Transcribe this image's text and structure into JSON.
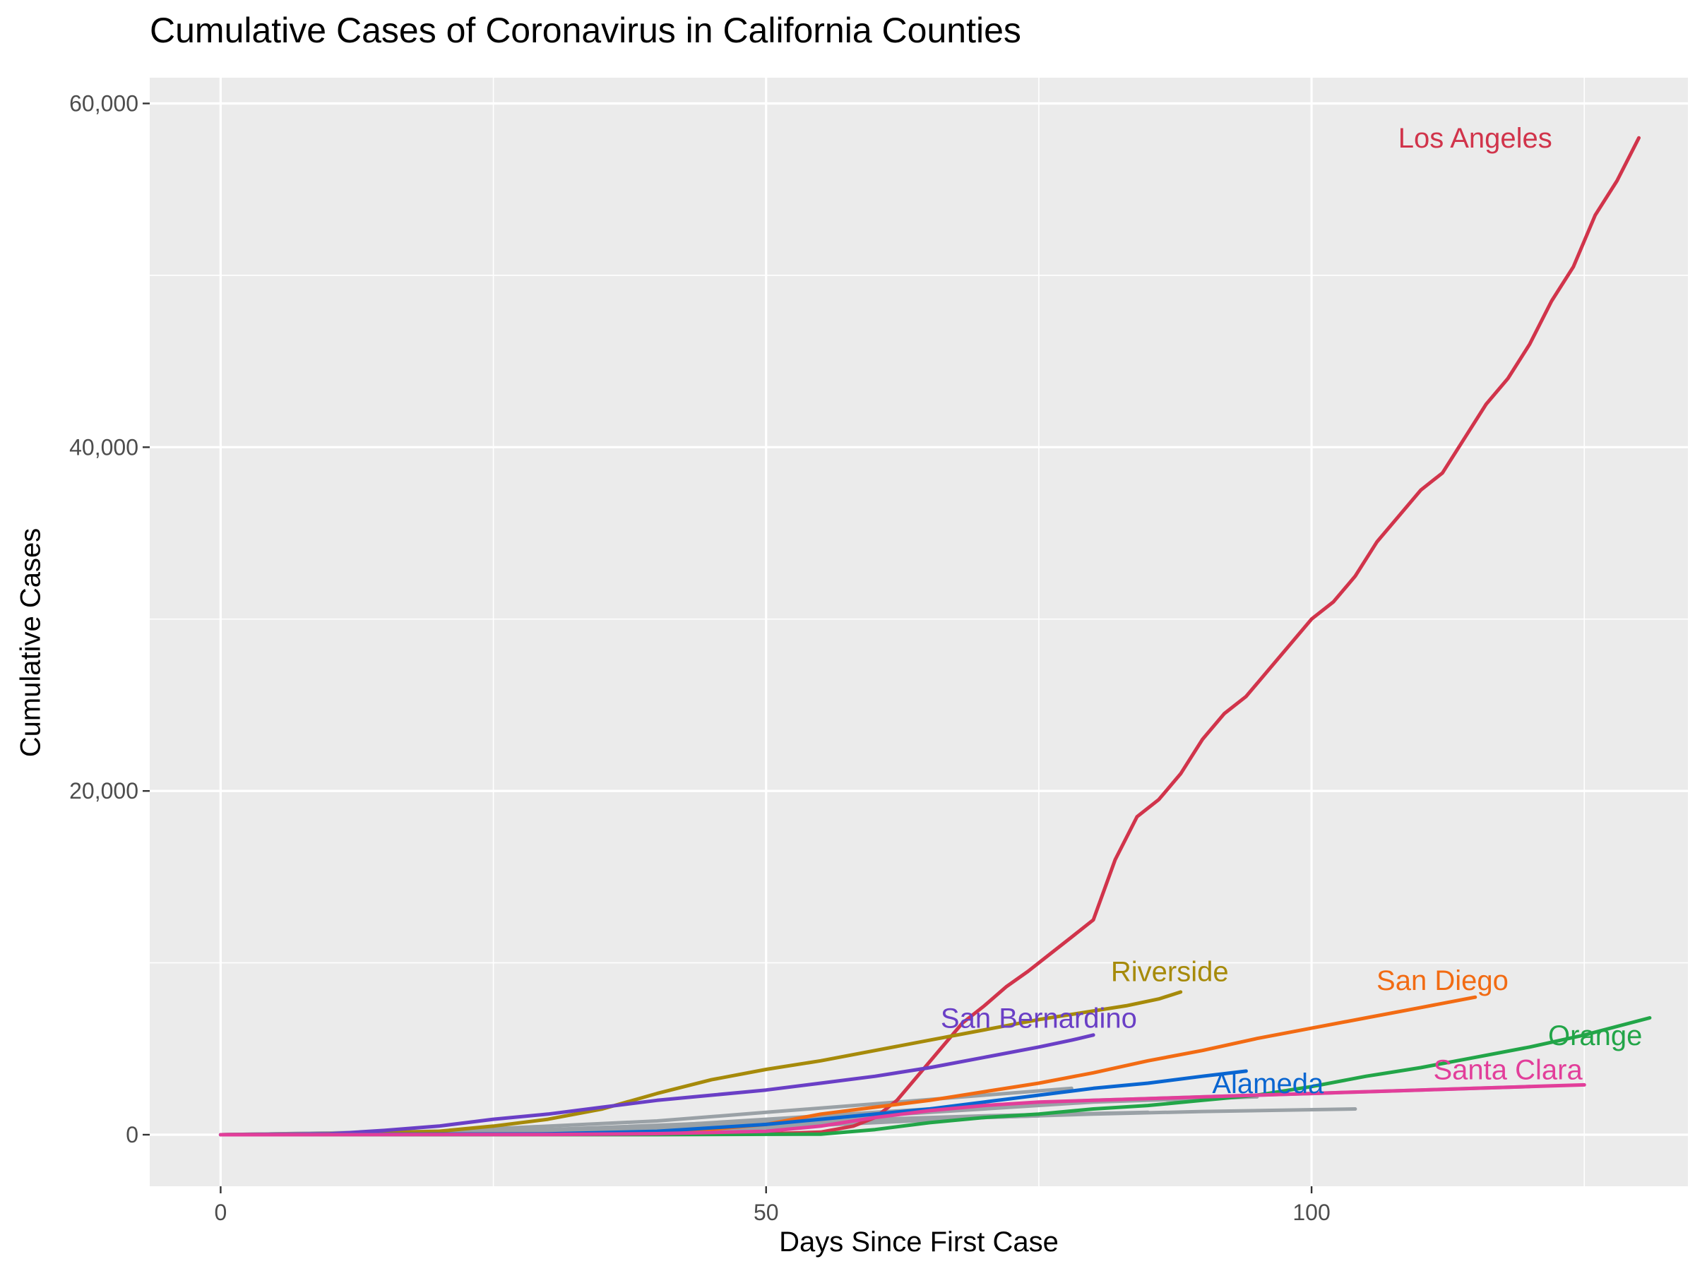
{
  "chart_data": {
    "type": "line",
    "title": "Cumulative Cases of Coronavirus in California Counties",
    "xlabel": "Days Since First Case",
    "ylabel": "Cumulative Cases",
    "xlim": [
      -6.5,
      134.5
    ],
    "ylim": [
      -3000,
      61500
    ],
    "x_ticks": [
      0,
      50,
      100
    ],
    "x_tick_labels": [
      "0",
      "50",
      "100"
    ],
    "y_ticks": [
      0,
      20000,
      40000,
      60000
    ],
    "y_tick_labels": [
      "0",
      "20,000",
      "40,000",
      "60,000"
    ],
    "grid": true,
    "legend": "none (direct labels)",
    "panel_background": "#EBEBEB",
    "grid_color": "#FFFFFF",
    "series": [
      {
        "name": "Los Angeles",
        "color": "#D1344B",
        "label_at": [
          115,
          58000
        ],
        "x": [
          0,
          10,
          20,
          30,
          40,
          45,
          50,
          55,
          58,
          60,
          62,
          64,
          66,
          68,
          70,
          72,
          74,
          76,
          78,
          80,
          82,
          84,
          86,
          88,
          90,
          92,
          94,
          96,
          98,
          100,
          102,
          104,
          106,
          108,
          110,
          112,
          114,
          116,
          118,
          120,
          122,
          124,
          126,
          128,
          130
        ],
        "values": [
          0,
          5,
          10,
          12,
          15,
          20,
          50,
          150,
          500,
          1000,
          2000,
          3500,
          5000,
          6500,
          7500,
          8600,
          9500,
          10500,
          11500,
          12500,
          16000,
          18500,
          19500,
          21000,
          23000,
          24500,
          25500,
          27000,
          28500,
          30000,
          31000,
          32500,
          34500,
          36000,
          37500,
          38500,
          40500,
          42500,
          44000,
          46000,
          48500,
          50500,
          53500,
          55500,
          58000
        ]
      },
      {
        "name": "Riverside",
        "color": "#A68A0A",
        "label_at": [
          87,
          9500
        ],
        "x": [
          0,
          10,
          20,
          25,
          30,
          35,
          40,
          45,
          50,
          55,
          60,
          65,
          70,
          75,
          80,
          83,
          86,
          88
        ],
        "values": [
          0,
          50,
          200,
          500,
          900,
          1500,
          2400,
          3200,
          3800,
          4300,
          4900,
          5500,
          6100,
          6700,
          7200,
          7500,
          7900,
          8300
        ]
      },
      {
        "name": "San Bernardino",
        "color": "#6A3FC6",
        "label_at": [
          75,
          6800
        ],
        "x": [
          0,
          10,
          15,
          20,
          25,
          30,
          35,
          40,
          45,
          50,
          55,
          60,
          65,
          70,
          75,
          78,
          80
        ],
        "values": [
          0,
          50,
          250,
          500,
          900,
          1200,
          1600,
          2000,
          2300,
          2600,
          3000,
          3400,
          3900,
          4500,
          5100,
          5500,
          5800
        ]
      },
      {
        "name": "San Diego",
        "color": "#F26B13",
        "label_at": [
          112,
          9000
        ],
        "x": [
          0,
          20,
          40,
          50,
          55,
          60,
          65,
          70,
          75,
          80,
          85,
          90,
          95,
          100,
          105,
          110,
          115
        ],
        "values": [
          0,
          10,
          30,
          600,
          1200,
          1600,
          2000,
          2500,
          3000,
          3600,
          4300,
          4900,
          5600,
          6200,
          6800,
          7400,
          8000
        ]
      },
      {
        "name": "Orange",
        "color": "#22A548",
        "label_at": [
          126,
          5800
        ],
        "x": [
          0,
          40,
          55,
          60,
          65,
          70,
          75,
          80,
          85,
          90,
          95,
          100,
          105,
          110,
          115,
          120,
          125,
          131
        ],
        "values": [
          0,
          5,
          30,
          300,
          700,
          1000,
          1200,
          1500,
          1700,
          2000,
          2300,
          2800,
          3400,
          3900,
          4500,
          5100,
          5800,
          6800
        ]
      },
      {
        "name": "Alameda",
        "color": "#0A66D1",
        "label_at": [
          96,
          3000
        ],
        "x": [
          0,
          30,
          40,
          50,
          55,
          60,
          65,
          70,
          75,
          80,
          85,
          90,
          94
        ],
        "values": [
          0,
          50,
          200,
          600,
          900,
          1200,
          1500,
          1900,
          2300,
          2700,
          3000,
          3400,
          3700
        ]
      },
      {
        "name": "Santa Clara",
        "color": "#E23E9A",
        "label_at": [
          118,
          3800
        ],
        "x": [
          0,
          30,
          40,
          50,
          55,
          60,
          65,
          70,
          75,
          80,
          85,
          90,
          95,
          100,
          105,
          110,
          115,
          120,
          125
        ],
        "values": [
          0,
          10,
          60,
          200,
          500,
          1000,
          1400,
          1700,
          1900,
          2000,
          2100,
          2200,
          2300,
          2400,
          2500,
          2600,
          2700,
          2800,
          2900
        ]
      },
      {
        "name": "",
        "color": "#9AA1A6",
        "x": [
          0,
          20,
          40,
          50,
          60,
          70,
          78
        ],
        "values": [
          0,
          200,
          800,
          1300,
          1800,
          2300,
          2700
        ]
      },
      {
        "name": "",
        "color": "#9AA1A6",
        "x": [
          0,
          20,
          40,
          50,
          60,
          70,
          80,
          90,
          100,
          110,
          120
        ],
        "values": [
          0,
          100,
          500,
          900,
          1300,
          1700,
          2000,
          2200,
          2400,
          2600,
          2800
        ]
      },
      {
        "name": "",
        "color": "#9AA1A6",
        "x": [
          0,
          30,
          50,
          60,
          70,
          80,
          90,
          104
        ],
        "values": [
          0,
          100,
          400,
          700,
          1000,
          1200,
          1350,
          1500
        ]
      },
      {
        "name": "",
        "color": "#9AA1A6",
        "x": [
          0,
          30,
          50,
          60,
          70,
          85
        ],
        "values": [
          0,
          200,
          600,
          900,
          1100,
          1300
        ]
      },
      {
        "name": "",
        "color": "#9AA1A6",
        "x": [
          0,
          30,
          50,
          60,
          70,
          80,
          95
        ],
        "values": [
          0,
          300,
          800,
          1100,
          1500,
          1900,
          2200
        ]
      },
      {
        "name": "",
        "color": "#9AA1A6",
        "x": [
          0,
          30,
          45,
          55,
          65,
          75
        ],
        "values": [
          0,
          100,
          400,
          700,
          900,
          1100
        ]
      }
    ]
  }
}
